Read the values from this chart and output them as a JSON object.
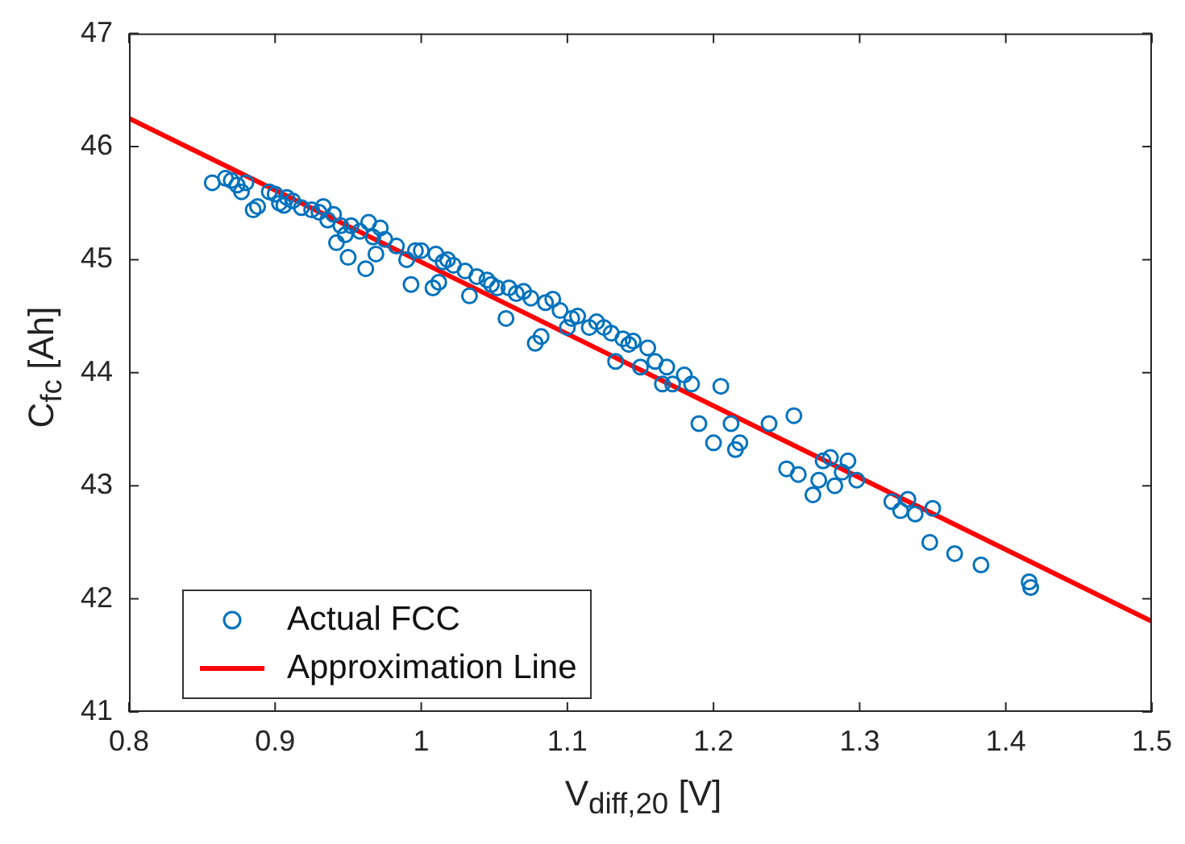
{
  "chart_data": {
    "type": "scatter",
    "xlabel": "V$_{diff,20}$ [V]",
    "ylabel": "C$_{fc}$  [Ah]",
    "xlim": [
      0.8,
      1.5
    ],
    "xticks": [
      0.8,
      0.9,
      1,
      1.1,
      1.2,
      1.3,
      1.4,
      1.5
    ],
    "ylim": [
      41,
      47
    ],
    "yticks": [
      41,
      42,
      43,
      44,
      45,
      46,
      47
    ],
    "grid": false,
    "legend": "bottom left",
    "marker": "circle",
    "series": [
      {
        "name": "Actual FCC",
        "type": "scatter",
        "color": "#0072bd",
        "x": [
          0.857,
          0.866,
          0.87,
          0.874,
          0.877,
          0.88,
          0.885,
          0.888,
          0.896,
          0.9,
          0.903,
          0.906,
          0.908,
          0.912,
          0.918,
          0.925,
          0.93,
          0.933,
          0.936,
          0.94,
          0.942,
          0.945,
          0.948,
          0.95,
          0.952,
          0.958,
          0.962,
          0.964,
          0.967,
          0.969,
          0.972,
          0.975,
          0.983,
          0.99,
          0.993,
          0.996,
          1.0,
          1.008,
          1.01,
          1.012,
          1.015,
          1.018,
          1.022,
          1.03,
          1.033,
          1.038,
          1.045,
          1.048,
          1.052,
          1.058,
          1.06,
          1.065,
          1.07,
          1.075,
          1.078,
          1.082,
          1.085,
          1.09,
          1.095,
          1.1,
          1.103,
          1.107,
          1.115,
          1.12,
          1.125,
          1.13,
          1.133,
          1.138,
          1.142,
          1.145,
          1.15,
          1.155,
          1.16,
          1.165,
          1.168,
          1.172,
          1.18,
          1.185,
          1.19,
          1.2,
          1.205,
          1.212,
          1.215,
          1.218,
          1.238,
          1.25,
          1.255,
          1.258,
          1.268,
          1.272,
          1.275,
          1.28,
          1.283,
          1.288,
          1.292,
          1.298,
          1.322,
          1.328,
          1.333,
          1.338,
          1.348,
          1.35,
          1.365,
          1.383,
          1.416,
          1.417
        ],
        "values": [
          45.68,
          45.72,
          45.7,
          45.66,
          45.6,
          45.68,
          45.44,
          45.47,
          45.6,
          45.58,
          45.5,
          45.48,
          45.55,
          45.52,
          45.46,
          45.44,
          45.42,
          45.47,
          45.35,
          45.4,
          45.15,
          45.3,
          45.22,
          45.02,
          45.3,
          45.25,
          44.92,
          45.33,
          45.2,
          45.05,
          45.28,
          45.18,
          45.12,
          45.0,
          44.78,
          45.08,
          45.08,
          44.75,
          45.05,
          44.8,
          44.98,
          45.0,
          44.95,
          44.9,
          44.68,
          44.85,
          44.82,
          44.78,
          44.75,
          44.48,
          44.75,
          44.7,
          44.72,
          44.66,
          44.26,
          44.32,
          44.62,
          44.65,
          44.55,
          44.4,
          44.48,
          44.5,
          44.4,
          44.45,
          44.4,
          44.35,
          44.1,
          44.3,
          44.25,
          44.28,
          44.05,
          44.22,
          44.1,
          43.9,
          44.05,
          43.9,
          43.98,
          43.9,
          43.55,
          43.38,
          43.88,
          43.55,
          43.32,
          43.38,
          43.55,
          43.15,
          43.62,
          43.1,
          42.92,
          43.05,
          43.22,
          43.25,
          43.0,
          43.12,
          43.22,
          43.05,
          42.86,
          42.78,
          42.88,
          42.75,
          42.5,
          42.8,
          42.4,
          42.3,
          42.15,
          42.1
        ]
      },
      {
        "name": "Approximation Line",
        "type": "line",
        "color": "#ff0000",
        "marker": "none",
        "line_style": "solid",
        "x": [
          0.8,
          1.5
        ],
        "values": [
          46.25,
          41.8
        ]
      }
    ]
  }
}
